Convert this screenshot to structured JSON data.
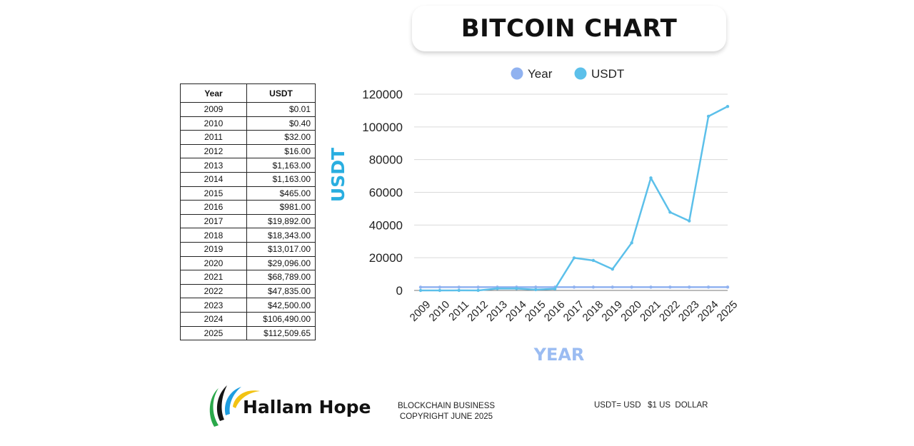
{
  "header": {
    "title": "BITCOIN CHART"
  },
  "table": {
    "headers": [
      "Year",
      "USDT"
    ],
    "rows": [
      [
        "2009",
        "$0.01"
      ],
      [
        "2010",
        "$0.40"
      ],
      [
        "2011",
        "$32.00"
      ],
      [
        "2012",
        "$16.00"
      ],
      [
        "2013",
        "$1,163.00"
      ],
      [
        "2014",
        "$1,163.00"
      ],
      [
        "2015",
        "$465.00"
      ],
      [
        "2016",
        "$981.00"
      ],
      [
        "2017",
        "$19,892.00"
      ],
      [
        "2018",
        "$18,343.00"
      ],
      [
        "2019",
        "$13,017.00"
      ],
      [
        "2020",
        "$29,096.00"
      ],
      [
        "2021",
        "$68,789.00"
      ],
      [
        "2022",
        "$47,835.00"
      ],
      [
        "2023",
        "$42,500.00"
      ],
      [
        "2024",
        "$106,490.00"
      ],
      [
        "2025",
        "$112,509.65"
      ]
    ]
  },
  "chart_data": {
    "type": "line",
    "title": "",
    "xlabel": "YEAR",
    "ylabel": "USDT",
    "categories": [
      "2009",
      "2010",
      "2011",
      "2012",
      "2013",
      "2014",
      "2015",
      "2016",
      "2017",
      "2018",
      "2019",
      "2020",
      "2021",
      "2022",
      "2023",
      "2024",
      "2025"
    ],
    "series": [
      {
        "name": "Year",
        "color": "#90b2f0",
        "values": [
          2009,
          2010,
          2011,
          2012,
          2013,
          2014,
          2015,
          2016,
          2017,
          2018,
          2019,
          2020,
          2021,
          2022,
          2023,
          2024,
          2025
        ]
      },
      {
        "name": "USDT",
        "color": "#5cc0ea",
        "values": [
          0.01,
          0.4,
          32,
          16,
          1163,
          1163,
          465,
          981,
          19892,
          18343,
          13017,
          29096,
          68789,
          47835,
          42500,
          106490,
          112509.65
        ]
      }
    ],
    "ylim": [
      0,
      120000
    ],
    "yticks": [
      0,
      20000,
      40000,
      60000,
      80000,
      100000,
      120000
    ],
    "grid": true,
    "legend_position": "top"
  },
  "footer": {
    "brand": "Hallam Hope",
    "line1": "BLOCKCHAIN BUSINESS",
    "line2": "COPYRIGHT JUNE 2025",
    "note": "USDT= USD   $1 US  DOLLAR"
  }
}
